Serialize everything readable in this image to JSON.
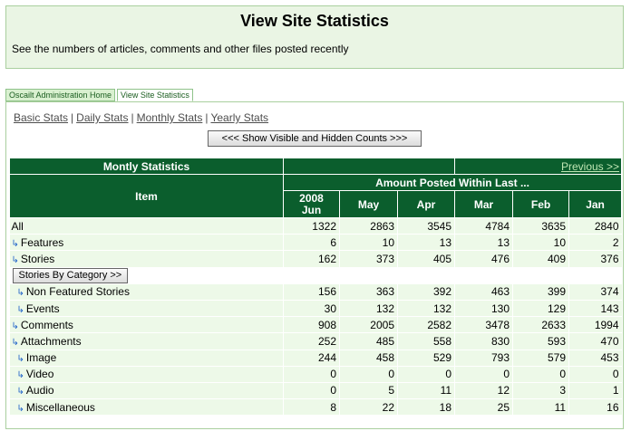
{
  "header": {
    "title": "View Site Statistics",
    "subtitle": "See the numbers of articles, comments and other files posted recently"
  },
  "tabs": [
    {
      "label": "Oscailt Administration Home"
    },
    {
      "label": "View Site Statistics"
    }
  ],
  "nav": {
    "basic": "Basic Stats",
    "daily": "Daily Stats",
    "monthly": "Monthly Stats",
    "yearly": "Yearly Stats",
    "separator": "|"
  },
  "toggle_button": "<<<   Show Visible and Hidden Counts   >>>",
  "table": {
    "section_title": "Montly Statistics",
    "previous_link": "Previous >>",
    "item_header": "Item",
    "amount_header": "Amount Posted Within Last ...",
    "year": "2008",
    "months": [
      "Jun",
      "May",
      "Apr",
      "Mar",
      "Feb",
      "Jan"
    ],
    "category_button": "Stories By Category  >>",
    "rows": [
      {
        "label": "All",
        "values": [
          1322,
          2863,
          3545,
          4784,
          3635,
          2840
        ]
      },
      {
        "label": "Features",
        "values": [
          6,
          10,
          13,
          13,
          10,
          2
        ]
      },
      {
        "label": "Stories",
        "values": [
          162,
          373,
          405,
          476,
          409,
          376
        ]
      },
      {
        "label": "Non Featured Stories",
        "values": [
          156,
          363,
          392,
          463,
          399,
          374
        ]
      },
      {
        "label": "Events",
        "values": [
          30,
          132,
          132,
          130,
          129,
          143
        ]
      },
      {
        "label": "Comments",
        "values": [
          908,
          2005,
          2582,
          3478,
          2633,
          1994
        ]
      },
      {
        "label": "Attachments",
        "values": [
          252,
          485,
          558,
          830,
          593,
          470
        ]
      },
      {
        "label": "Image",
        "values": [
          244,
          458,
          529,
          793,
          579,
          453
        ]
      },
      {
        "label": "Video",
        "values": [
          0,
          0,
          0,
          0,
          0,
          0
        ]
      },
      {
        "label": "Audio",
        "values": [
          0,
          5,
          11,
          12,
          3,
          1
        ]
      },
      {
        "label": "Miscellaneous",
        "values": [
          8,
          22,
          18,
          25,
          11,
          16
        ]
      }
    ]
  },
  "colors": {
    "header_bg": "#0b5e2d",
    "row_bg": "#edf9e8",
    "panel_bg": "#eaf5e4",
    "arrow": "#1f62c8"
  }
}
